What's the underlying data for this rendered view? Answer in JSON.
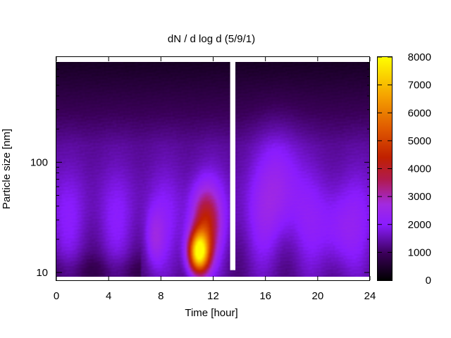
{
  "chart_data": {
    "type": "heatmap",
    "title": "dN / d log d (5/9/1)",
    "xlabel": "Time [hour]",
    "ylabel": "Particle size [nm]",
    "xlim": [
      0,
      24
    ],
    "ylim": [
      8.5,
      900
    ],
    "y_scale": "log",
    "x_ticks": [
      0,
      4,
      8,
      12,
      16,
      20,
      24
    ],
    "y_ticks": [
      10,
      100
    ],
    "colorbar": {
      "range": [
        0,
        8000
      ],
      "ticks": [
        0,
        1000,
        2000,
        3000,
        4000,
        5000,
        6000,
        7000,
        8000
      ],
      "palette": "black-purple-red-orange-yellow"
    },
    "grid": false,
    "missing_data": {
      "x_range": [
        13.3,
        13.7
      ],
      "y_range": [
        10.5,
        900
      ]
    },
    "features": [
      {
        "label": "nucleation-burst",
        "time": 10.9,
        "size_nm": 15,
        "peak_value": 7500
      },
      {
        "label": "growth-tail",
        "time": 11.5,
        "size_nm": 35,
        "peak_value": 3500
      },
      {
        "label": "afternoon-mode",
        "time": 17,
        "size_nm": 60,
        "peak_value": 2600
      }
    ]
  }
}
